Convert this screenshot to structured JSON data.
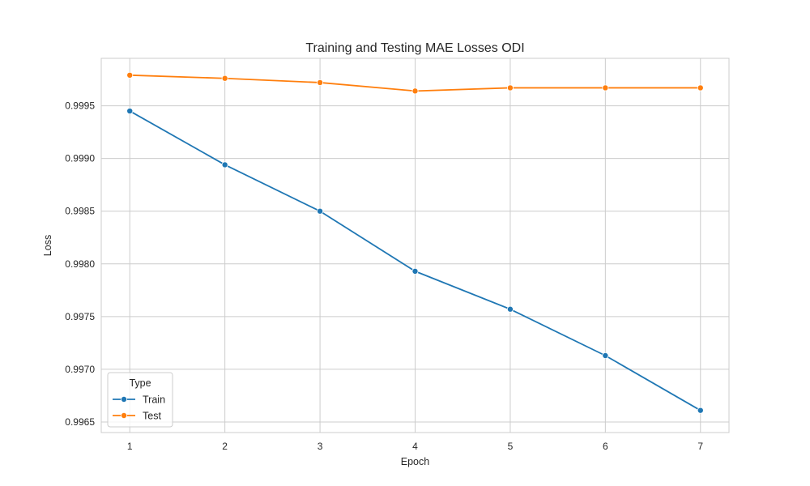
{
  "chart_data": {
    "type": "line",
    "title": "Training and Testing MAE Losses ODI",
    "xlabel": "Epoch",
    "ylabel": "Loss",
    "x": [
      1,
      2,
      3,
      4,
      5,
      6,
      7
    ],
    "x_ticks": [
      "1",
      "2",
      "3",
      "4",
      "5",
      "6",
      "7"
    ],
    "xlim": [
      0.7,
      7.3
    ],
    "ylim": [
      0.9964,
      0.99995
    ],
    "y_ticks": [
      0.9965,
      0.997,
      0.9975,
      0.998,
      0.9985,
      0.999,
      0.9995
    ],
    "y_tick_labels": [
      "0.9965",
      "0.9970",
      "0.9975",
      "0.9980",
      "0.9985",
      "0.9990",
      "0.9995"
    ],
    "grid": true,
    "legend": {
      "title": "Type",
      "placement": "lower-left"
    },
    "series": [
      {
        "name": "Train",
        "color": "#1f77b4",
        "marker": "circle",
        "values": [
          0.99945,
          0.99894,
          0.9985,
          0.99793,
          0.99757,
          0.99713,
          0.99661
        ]
      },
      {
        "name": "Test",
        "color": "#ff7f0e",
        "marker": "circle",
        "values": [
          0.99979,
          0.99976,
          0.99972,
          0.99964,
          0.99967,
          0.99967,
          0.99967
        ]
      }
    ]
  }
}
